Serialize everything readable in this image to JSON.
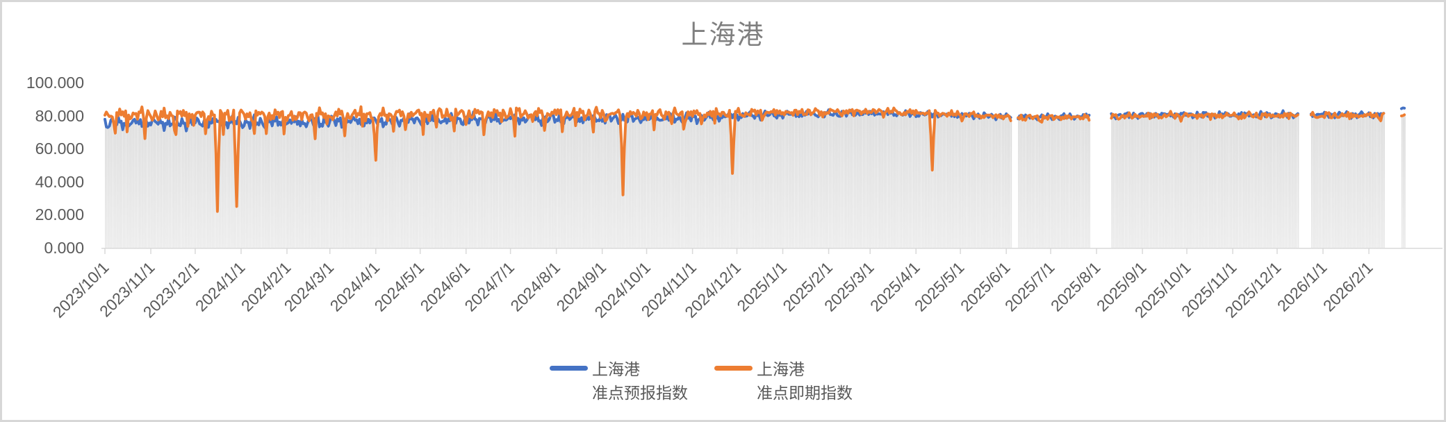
{
  "window": {
    "background": "#ffffff",
    "border_color": "#d7d7d7"
  },
  "chart_data": {
    "type": "line",
    "title": "上海港",
    "title_color": "#7f7f7f",
    "ylim": [
      0,
      100
    ],
    "ytick_values": [
      0,
      20,
      40,
      60,
      80,
      100
    ],
    "ytick_labels": [
      "0.000",
      "20.000",
      "40.000",
      "60.000",
      "80.000",
      "100.000"
    ],
    "xtick_labels": [
      "2023/10/1",
      "2023/11/1",
      "2023/12/1",
      "2024/1/1",
      "2024/2/1",
      "2024/3/1",
      "2024/4/1",
      "2024/5/1",
      "2024/6/1",
      "2024/7/1",
      "2024/8/1",
      "2024/9/1",
      "2024/10/1",
      "2024/11/1",
      "2024/12/1",
      "2025/1/1",
      "2025/2/1",
      "2025/3/1",
      "2025/4/1",
      "2025/5/1",
      "2025/6/1",
      "2025/7/1",
      "2025/8/1",
      "2025/9/1",
      "2025/10/1",
      "2025/11/1",
      "2025/12/1",
      "2026/1/1",
      "2026/2/1"
    ],
    "x_start_date": "2023-10-01",
    "x_end_date": "2026-02-25",
    "x_frequency": "daily",
    "tick_label_color": "#595959",
    "axis_color": "#d9d9d9",
    "grid": false,
    "legend_position": "bottom-center",
    "background_bars": {
      "description": "light gray daily bars behind the lines, height tracks the lower envelope of the two series",
      "color_top": "#d2d2d2",
      "color_bottom": "#e8e8e8",
      "offset_below_lines": 0.8
    },
    "gaps": [
      [
        "2025-06-05",
        "2025-06-08"
      ],
      [
        "2025-07-28",
        "2025-08-10"
      ],
      [
        "2025-12-16",
        "2025-12-23"
      ],
      [
        "2026-02-12",
        "2026-02-22"
      ]
    ],
    "series": [
      {
        "id": "forecast",
        "legend_label": "上海港\n准点预报指数",
        "color": "#4472C4",
        "keyframes": [
          [
            "2023-10-01",
            75.5,
            5.2
          ],
          [
            "2024-02-01",
            76.0,
            5.2
          ],
          [
            "2024-07-01",
            78.0,
            4.6
          ],
          [
            "2024-11-01",
            78.5,
            4.2
          ],
          [
            "2024-12-20",
            80.5,
            3.2
          ],
          [
            "2025-03-10",
            81.5,
            2.6
          ],
          [
            "2025-06-20",
            79.0,
            2.3
          ],
          [
            "2025-09-15",
            80.5,
            2.6
          ],
          [
            "2026-02-11",
            80.5,
            2.6
          ],
          [
            "2026-02-23",
            84.2,
            0.5
          ],
          [
            "2026-02-25",
            84.5,
            0.5
          ]
        ],
        "phases": [
          0.8,
          2.0,
          4.4,
          1.1
        ],
        "max_value": 87.5,
        "dips": []
      },
      {
        "id": "spot",
        "legend_label": "上海港\n准点即期指数",
        "color": "#ED7D31",
        "keyframes": [
          [
            "2023-10-01",
            80.8,
            5.0,
            15
          ],
          [
            "2024-02-01",
            80.5,
            5.2,
            15
          ],
          [
            "2024-07-01",
            81.5,
            4.8,
            13
          ],
          [
            "2024-11-01",
            81.0,
            4.2,
            10
          ],
          [
            "2024-12-20",
            82.0,
            3.0,
            4
          ],
          [
            "2025-03-10",
            82.8,
            2.6,
            3
          ],
          [
            "2025-06-20",
            78.8,
            2.4,
            2.5
          ],
          [
            "2025-09-15",
            80.2,
            2.6,
            2.5
          ],
          [
            "2026-02-11",
            80.2,
            2.6,
            2.5
          ],
          [
            "2026-02-23",
            80.0,
            0.5,
            0
          ],
          [
            "2026-02-25",
            80.3,
            0.5,
            0
          ]
        ],
        "phases": [
          3.7,
          0.5,
          2.6,
          5.0
        ],
        "max_value": 88.5,
        "dips": [
          [
            "2023-12-16",
            22
          ],
          [
            "2023-12-29",
            25
          ],
          [
            "2024-04-01",
            53
          ],
          [
            "2024-09-15",
            32
          ],
          [
            "2024-11-28",
            45
          ],
          [
            "2025-04-12",
            47
          ]
        ]
      }
    ]
  }
}
